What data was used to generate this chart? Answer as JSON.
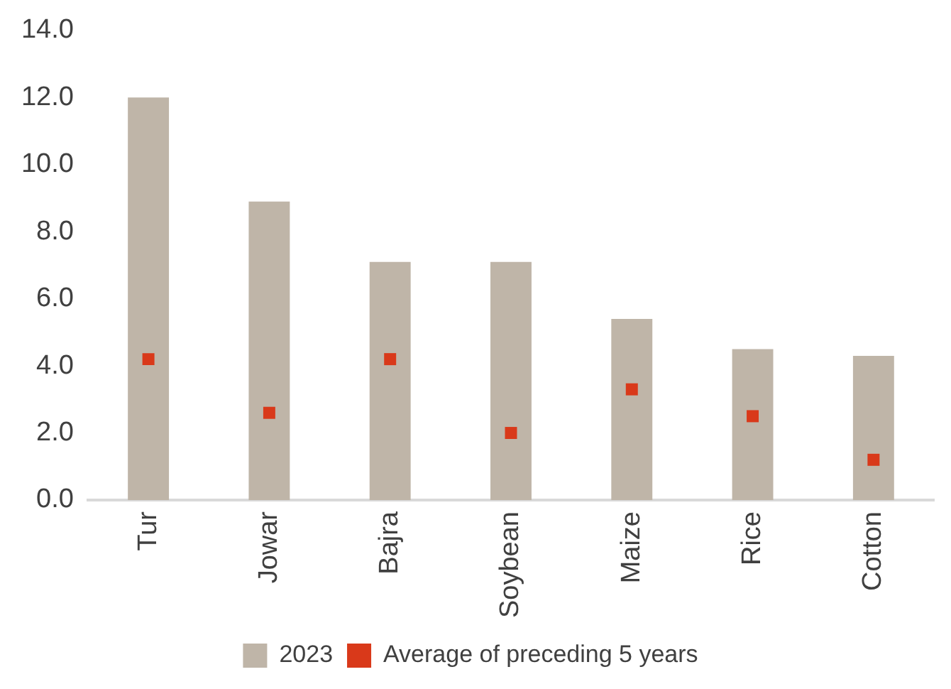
{
  "chart_data": {
    "type": "bar",
    "categories": [
      "Tur",
      "Jowar",
      "Bajra",
      "Soybean",
      "Maize",
      "Rice",
      "Cotton"
    ],
    "series": [
      {
        "name": "2023",
        "color": "#bfb5a8",
        "values": [
          12.0,
          8.9,
          7.1,
          7.1,
          5.4,
          4.5,
          4.3
        ]
      },
      {
        "name": "Average of preceding 5 years",
        "type": "scatter",
        "marker": "square",
        "color": "#d9391a",
        "values": [
          4.2,
          2.6,
          4.2,
          2.0,
          3.3,
          2.5,
          1.2
        ]
      }
    ],
    "ylim": [
      0,
      14
    ],
    "yticks": [
      {
        "value": 0,
        "label": "0.0"
      },
      {
        "value": 2,
        "label": "2.0"
      },
      {
        "value": 4,
        "label": "4.0"
      },
      {
        "value": 6,
        "label": "6.0"
      },
      {
        "value": 8,
        "label": "8.0"
      },
      {
        "value": 10,
        "label": "10.0"
      },
      {
        "value": 12,
        "label": "12.0"
      },
      {
        "value": 14,
        "label": "14.0"
      }
    ],
    "grid": false,
    "legend": "bottom"
  }
}
